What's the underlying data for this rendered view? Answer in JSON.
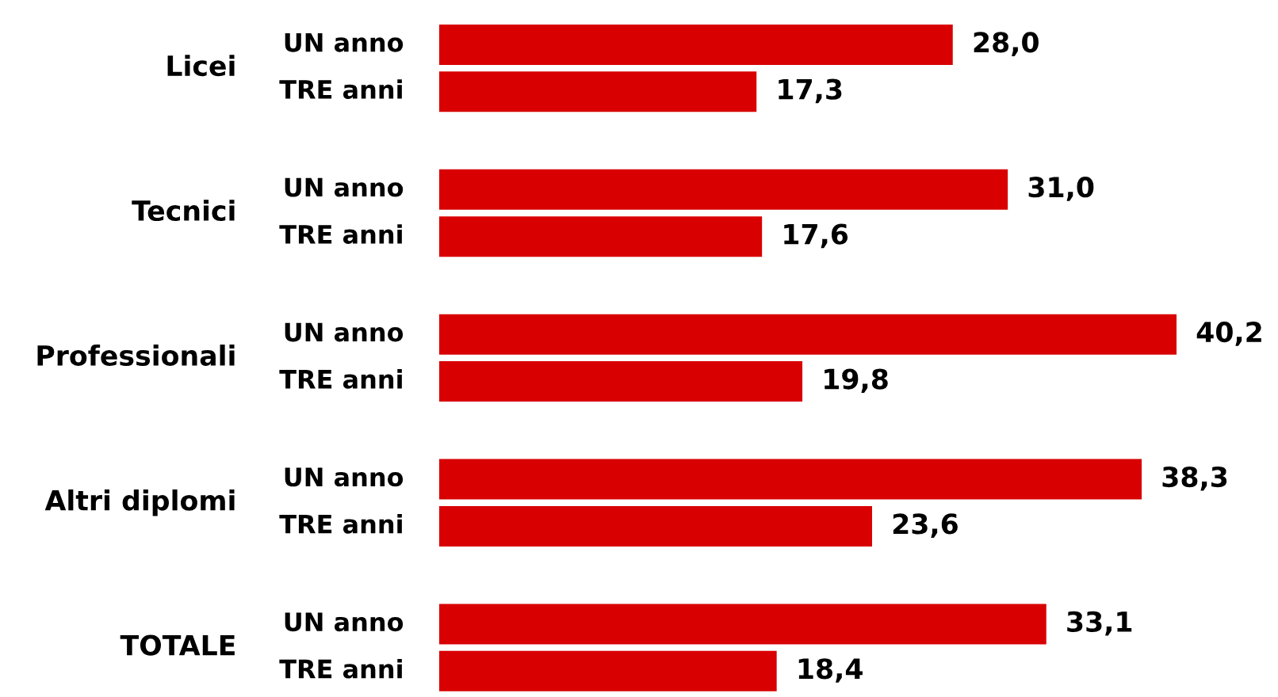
{
  "chart_data": {
    "type": "bar",
    "orientation": "horizontal",
    "categories": [
      "Licei",
      "Tecnici",
      "Professionali",
      "Altri diplomi",
      "TOTALE"
    ],
    "series": [
      {
        "name": "UN anno",
        "color": "#d80000",
        "values": [
          28.0,
          31.0,
          40.2,
          38.3,
          33.1
        ],
        "value_labels": [
          "28,0",
          "31,0",
          "40,2",
          "38,3",
          "33,1"
        ]
      },
      {
        "name": "TRE anni",
        "color": "#d80000",
        "values": [
          17.3,
          17.6,
          19.8,
          23.6,
          18.4
        ],
        "value_labels": [
          "17,3",
          "17,6",
          "19,8",
          "23,6",
          "18,4"
        ]
      }
    ]
  }
}
